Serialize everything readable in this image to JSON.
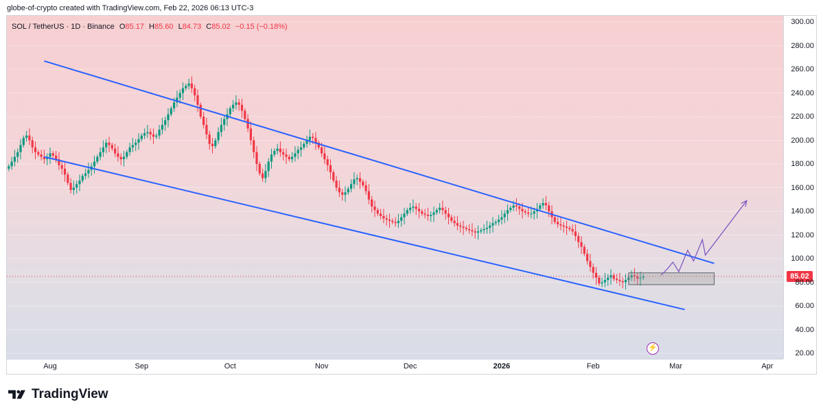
{
  "header": {
    "credit": "globe-of-crypto created with TradingView.com, Feb 22, 2026 06:13 UTC-3"
  },
  "legend": {
    "symbol": "SOL / TetherUS · 1D · Binance",
    "o_label": "O",
    "o_value": "85.17",
    "h_label": "H",
    "h_value": "85.60",
    "l_label": "L",
    "l_value": "84.73",
    "c_label": "C",
    "c_value": "85.02",
    "change": "−0.15 (−0.18%)"
  },
  "price_badge": "85.02",
  "brand": {
    "name": "TradingView"
  },
  "colors": {
    "up": "#089981",
    "down": "#f23645",
    "channel": "#2962ff",
    "projection": "#7e57c2",
    "last_price_line": "#f23645"
  },
  "icons": {
    "bolt": "lightning-icon",
    "logo": "tradingview-logo-icon"
  },
  "chart_data": {
    "type": "candlestick",
    "title": "SOL / TetherUS · 1D · Binance",
    "y_range": [
      15,
      310
    ],
    "y_ticks": [
      "20.00",
      "40.00",
      "60.00",
      "80.00",
      "100.00",
      "120.00",
      "140.00",
      "160.00",
      "180.00",
      "200.00",
      "220.00",
      "240.00",
      "260.00",
      "280.00",
      "300.00"
    ],
    "y_tick_values": [
      20,
      40,
      60,
      80,
      100,
      120,
      140,
      160,
      180,
      200,
      220,
      240,
      260,
      280,
      300
    ],
    "x_ticks": [
      {
        "label": "Aug",
        "day": 0
      },
      {
        "label": "Sep",
        "day": 31
      },
      {
        "label": "Oct",
        "day": 61
      },
      {
        "label": "Nov",
        "day": 92
      },
      {
        "label": "Dec",
        "day": 122
      },
      {
        "label": "2026",
        "day": 153,
        "bold": true
      },
      {
        "label": "Feb",
        "day": 184
      },
      {
        "label": "Mar",
        "day": 212
      },
      {
        "label": "Apr",
        "day": 243
      }
    ],
    "first_day": -14,
    "last_price": 85.02,
    "closes": [
      178,
      182,
      186,
      190,
      196,
      202,
      204,
      200,
      194,
      190,
      188,
      186,
      184,
      186,
      189,
      187,
      184,
      179,
      176,
      171,
      164,
      158,
      160,
      163,
      166,
      170,
      172,
      175,
      178,
      182,
      186,
      190,
      194,
      198,
      196,
      193,
      189,
      186,
      184,
      186,
      190,
      194,
      196,
      198,
      201,
      204,
      206,
      207,
      205,
      203,
      204,
      209,
      213,
      217,
      222,
      227,
      232,
      236,
      240,
      244,
      246,
      248,
      244,
      238,
      230,
      220,
      213,
      205,
      197,
      195,
      200,
      207,
      213,
      218,
      222,
      227,
      230,
      232,
      230,
      225,
      218,
      210,
      200,
      190,
      180,
      172,
      168,
      174,
      182,
      188,
      191,
      193,
      190,
      188,
      186,
      184,
      186,
      189,
      192,
      194,
      197,
      200,
      203,
      202,
      198,
      194,
      189,
      184,
      179,
      173,
      166,
      160,
      156,
      154,
      156,
      159,
      163,
      167,
      168,
      165,
      162,
      157,
      150,
      144,
      141,
      138,
      136,
      134,
      133,
      132,
      131,
      130,
      132,
      135,
      138,
      141,
      143,
      144,
      142,
      140,
      138,
      137,
      136,
      137,
      139,
      141,
      143,
      141,
      138,
      135,
      132,
      130,
      128,
      127,
      126,
      125,
      124,
      123,
      122,
      123,
      124,
      125,
      126,
      128,
      130,
      131,
      133,
      135,
      138,
      141,
      143,
      145,
      144,
      142,
      140,
      139,
      138,
      138,
      140,
      142,
      145,
      147,
      145,
      140,
      135,
      131,
      129,
      128,
      127,
      126,
      125,
      123,
      119,
      114,
      110,
      104,
      98,
      93,
      88,
      84,
      79,
      80,
      82,
      84,
      86,
      83,
      82,
      81,
      80,
      82,
      84,
      86,
      85,
      83,
      84,
      85.02
    ],
    "channel_upper": {
      "start": {
        "day": -2,
        "price": 267
      },
      "end": {
        "day": 225,
        "price": 96
      }
    },
    "channel_lower": {
      "start": {
        "day": -2,
        "price": 186
      },
      "end": {
        "day": 215,
        "price": 57
      }
    },
    "consolidation_box": {
      "day_start": 196,
      "day_end": 225,
      "price_low": 78,
      "price_high": 88
    },
    "projection_path": [
      {
        "day": 207,
        "price": 86
      },
      {
        "day": 209,
        "price": 91
      },
      {
        "day": 211,
        "price": 97
      },
      {
        "day": 213,
        "price": 89
      },
      {
        "day": 216,
        "price": 107
      },
      {
        "day": 218,
        "price": 98
      },
      {
        "day": 221,
        "price": 116
      },
      {
        "day": 222,
        "price": 103
      },
      {
        "day": 236,
        "price": 149
      }
    ]
  }
}
